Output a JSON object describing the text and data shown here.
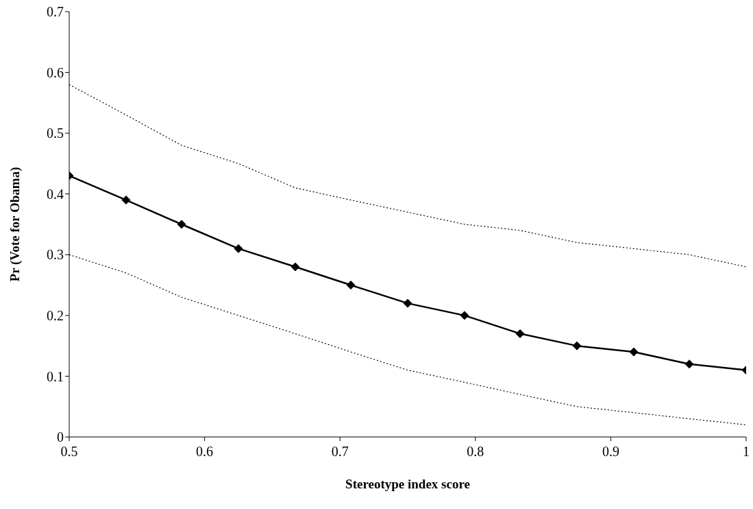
{
  "chart_data": {
    "type": "line",
    "xlabel": "Stereotype index score",
    "ylabel": "Pr (Vote for Obama)",
    "x": [
      0.5,
      0.542,
      0.583,
      0.625,
      0.667,
      0.708,
      0.75,
      0.792,
      0.833,
      0.875,
      0.917,
      0.958,
      1
    ],
    "xlim": [
      0.5,
      1
    ],
    "xticks": [
      0.5,
      0.6,
      0.7,
      0.8,
      0.9,
      1
    ],
    "ylim": [
      0,
      0.7
    ],
    "yticks": [
      0,
      0.1,
      0.2,
      0.3,
      0.4,
      0.5,
      0.6,
      0.7
    ],
    "grid": false,
    "series": [
      {
        "color": "#000000",
        "marker": "diamond",
        "line_style": "solid",
        "values": [
          0.43,
          0.39,
          0.35,
          0.31,
          0.28,
          0.25,
          0.22,
          0.2,
          0.17,
          0.15,
          0.14,
          0.12,
          0.11
        ]
      },
      {
        "color": "#000000",
        "marker": "none",
        "line_style": "dotted",
        "values": [
          0.58,
          0.53,
          0.48,
          0.45,
          0.41,
          0.39,
          0.37,
          0.35,
          0.34,
          0.32,
          0.31,
          0.3,
          0.28
        ]
      },
      {
        "color": "#000000",
        "marker": "none",
        "line_style": "dotted",
        "values": [
          0.3,
          0.27,
          0.23,
          0.2,
          0.17,
          0.14,
          0.11,
          0.09,
          0.07,
          0.05,
          0.04,
          0.03,
          0.02
        ]
      }
    ]
  }
}
